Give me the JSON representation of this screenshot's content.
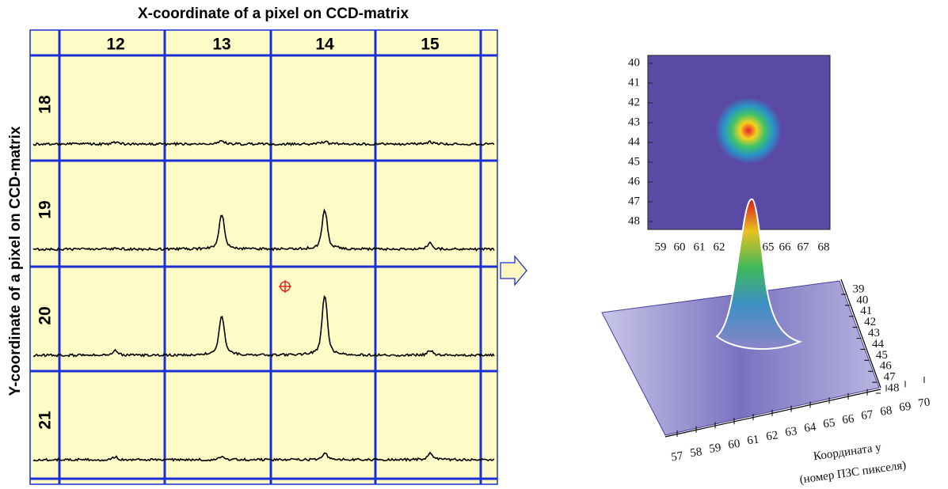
{
  "left_panel": {
    "x_title": "X-coordinate of a pixel on CCD-matrix",
    "y_title": "Y-coordinate of a pixel on CCD-matrix",
    "columns": [
      "12",
      "13",
      "14",
      "15"
    ],
    "rows": [
      {
        "label": "18",
        "peaks": [
          0.03,
          0.05,
          0.04,
          0.03
        ]
      },
      {
        "label": "19",
        "peaks": [
          0.02,
          0.55,
          0.62,
          0.1
        ]
      },
      {
        "label": "20",
        "peaks": [
          0.08,
          0.62,
          0.95,
          0.08
        ]
      },
      {
        "label": "21",
        "peaks": [
          0.04,
          0.05,
          0.1,
          0.1
        ]
      }
    ]
  },
  "heatmap": {
    "y_ticks": [
      "40",
      "41",
      "42",
      "43",
      "44",
      "45",
      "46",
      "47",
      "48"
    ],
    "x_ticks": [
      "59",
      "60",
      "61",
      "62",
      "65",
      "66",
      "67",
      "68"
    ]
  },
  "surface": {
    "depth_ticks": [
      "39",
      "40",
      "41",
      "42",
      "43",
      "44",
      "45",
      "46",
      "47",
      "48"
    ],
    "x_ticks": [
      "57",
      "58",
      "59",
      "60",
      "61",
      "62",
      "63",
      "64",
      "65",
      "66",
      "67",
      "68",
      "69",
      "70"
    ],
    "axis_label": "Координата y",
    "axis_sublabel": "(номер ПЗС пикселя)"
  }
}
